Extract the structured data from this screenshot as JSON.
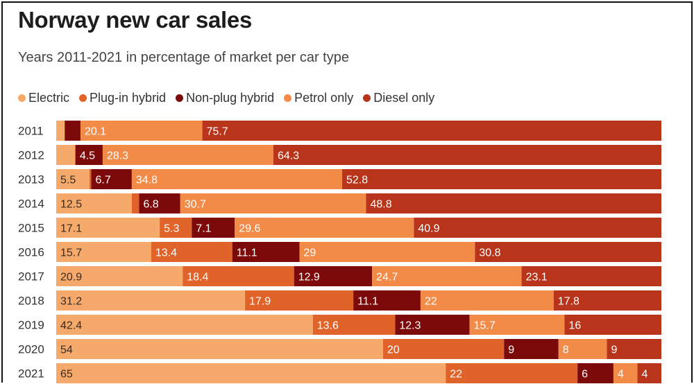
{
  "chart_data": {
    "type": "bar",
    "orientation": "horizontal",
    "stacked": true,
    "title": "Norway new car sales",
    "subtitle": "Years 2011-2021 in percentage of market per car type",
    "categories": [
      "2011",
      "2012",
      "2013",
      "2014",
      "2015",
      "2016",
      "2017",
      "2018",
      "2019",
      "2020",
      "2021"
    ],
    "series": [
      {
        "name": "Electric",
        "color": "#f5a96b",
        "values": [
          1.4,
          3.1,
          5.5,
          12.5,
          17.1,
          15.7,
          20.9,
          31.2,
          42.4,
          54,
          65
        ],
        "labels": [
          "",
          "",
          "5.5",
          "12.5",
          "17.1",
          "15.7",
          "20.9",
          "31.2",
          "42.4",
          "54",
          "65"
        ]
      },
      {
        "name": "Plug-in hybrid",
        "color": "#e0642a",
        "values": [
          0,
          0.1,
          0.3,
          1.2,
          5.3,
          13.4,
          18.4,
          17.9,
          13.6,
          20,
          22
        ],
        "labels": [
          "",
          "",
          "",
          "",
          "5.3",
          "13.4",
          "18.4",
          "17.9",
          "13.6",
          "20",
          "22"
        ]
      },
      {
        "name": "Non-plug hybrid",
        "color": "#7d0a0a",
        "values": [
          2.6,
          4.5,
          6.7,
          6.8,
          7.1,
          11.1,
          12.9,
          11.1,
          12.3,
          9,
          6
        ],
        "labels": [
          "",
          "4.5",
          "6.7",
          "6.8",
          "7.1",
          "11.1",
          "12.9",
          "11.1",
          "12.3",
          "9",
          "6"
        ]
      },
      {
        "name": "Petrol only",
        "color": "#f28a48",
        "values": [
          20.1,
          28.3,
          34.8,
          30.7,
          29.6,
          29,
          24.7,
          22,
          15.7,
          8,
          4
        ],
        "labels": [
          "20.1",
          "28.3",
          "34.8",
          "30.7",
          "29.6",
          "29",
          "24.7",
          "22",
          "15.7",
          "8",
          "4"
        ]
      },
      {
        "name": "Diesel only",
        "color": "#b8351c",
        "values": [
          75.7,
          64.3,
          52.8,
          48.8,
          40.9,
          30.8,
          23.1,
          17.8,
          16,
          9,
          4
        ],
        "labels": [
          "75.7",
          "64.3",
          "52.8",
          "48.8",
          "40.9",
          "30.8",
          "23.1",
          "17.8",
          "16",
          "9",
          "4"
        ]
      }
    ],
    "xlim": [
      0,
      100
    ],
    "grid": false,
    "legend": "top-left"
  }
}
